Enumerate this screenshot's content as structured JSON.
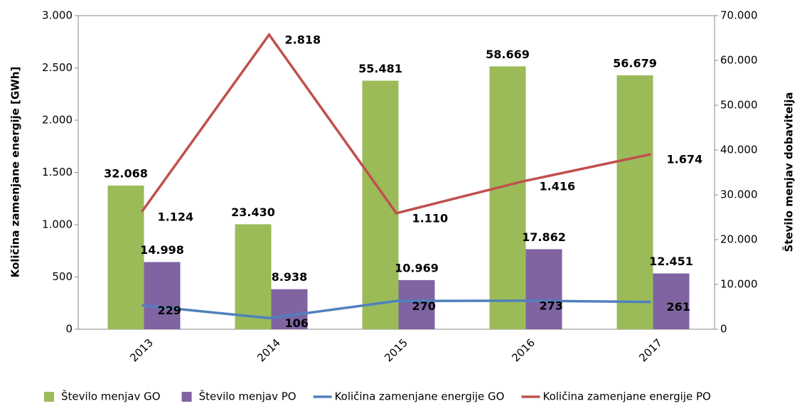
{
  "chart_data": {
    "type": "bar",
    "y_label": "Količina zamenjane energije [GWh]",
    "y2_label": "Število menjav dobavitelja",
    "categories": [
      "2013",
      "2014",
      "2015",
      "2016",
      "2017"
    ],
    "series": [
      {
        "name": "Število menjav GO",
        "type": "bar",
        "axis": "y2",
        "color": "#9bbb59",
        "values": [
          32068,
          23430,
          55481,
          58669,
          56679
        ],
        "value_labels": [
          "32.068",
          "23.430",
          "55.481",
          "58.669",
          "56.679"
        ]
      },
      {
        "name": "Število menjav PO",
        "type": "bar",
        "axis": "y2",
        "color": "#8064a2",
        "values": [
          14998,
          8938,
          10969,
          17862,
          12451
        ],
        "value_labels": [
          "14.998",
          "8.938",
          "10.969",
          "17.862",
          "12.451"
        ]
      },
      {
        "name": "Količina zamenjane energije GO",
        "type": "line",
        "color": "#4f81bd",
        "values": [
          229,
          106,
          270,
          273,
          261
        ]
      },
      {
        "name": "Količina zamenjane energije PO",
        "type": "line",
        "color": "#c0504d",
        "values": [
          1124,
          2818,
          1110,
          1416,
          1674
        ],
        "value_labels": [
          "1.124",
          "2.818",
          "1.110",
          "1.416",
          "1.674"
        ]
      }
    ],
    "ylim": [
      0,
      3000
    ],
    "yticks": [
      0,
      500,
      {
        "value": 1000,
        "label": "1.000"
      },
      {
        "value": 1500,
        "label": "1.500"
      },
      {
        "value": 2000,
        "label": "2.000"
      },
      {
        "value": 2500,
        "label": "2.500"
      },
      {
        "value": 3000,
        "label": "3.000"
      }
    ],
    "y2lim": [
      0,
      70000
    ],
    "y2ticks": [
      0,
      {
        "value": 10000,
        "label": "10.000"
      },
      {
        "value": 20000,
        "label": "20.000"
      },
      {
        "value": 30000,
        "label": "30.000"
      },
      {
        "value": 40000,
        "label": "40.000"
      },
      {
        "value": 50000,
        "label": "50.000"
      },
      {
        "value": 60000,
        "label": "60.000"
      },
      {
        "value": 70000,
        "label": "70.000"
      }
    ],
    "legend": "bottom"
  }
}
